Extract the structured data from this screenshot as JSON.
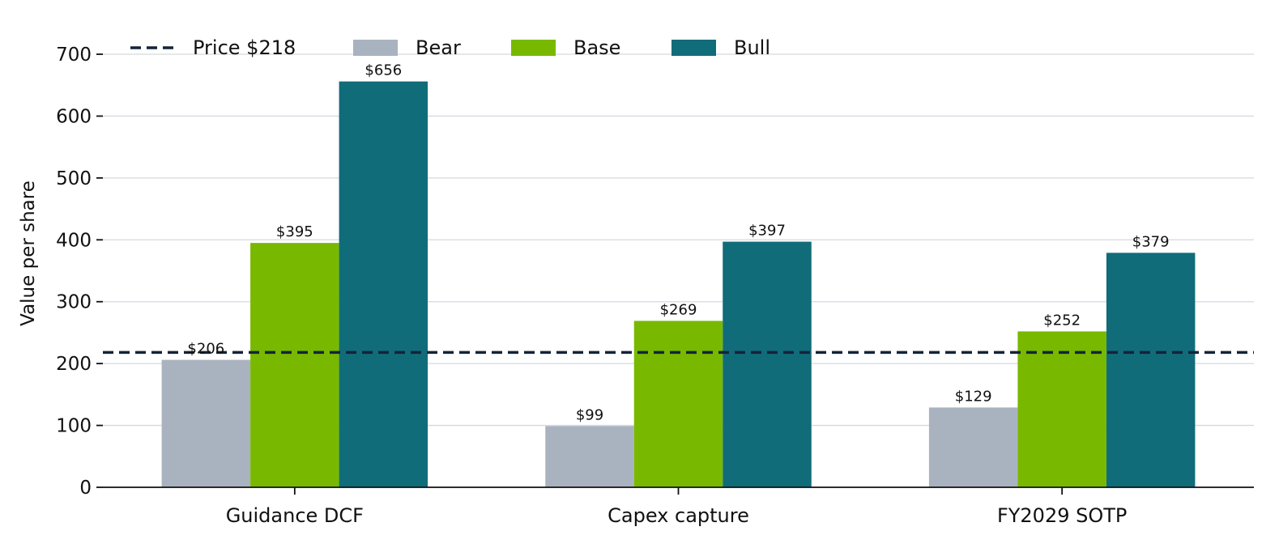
{
  "chart_data": {
    "type": "bar",
    "categories": [
      "Guidance DCF",
      "Capex capture",
      "FY2029 SOTP"
    ],
    "series": [
      {
        "name": "Bear",
        "values": [
          206,
          99,
          129
        ],
        "labels": [
          "$206",
          "$99",
          "$129"
        ],
        "color": "#a9b3bf"
      },
      {
        "name": "Base",
        "values": [
          395,
          269,
          252
        ],
        "labels": [
          "$395",
          "$269",
          "$252"
        ],
        "color": "#78b900"
      },
      {
        "name": "Bull",
        "values": [
          656,
          397,
          379
        ],
        "labels": [
          "$656",
          "$397",
          "$379"
        ],
        "color": "#116c7a"
      }
    ],
    "reference_line": {
      "label": "Price $218",
      "value": 218,
      "color": "#13243a",
      "style": "dashed"
    },
    "xlabel": "",
    "ylabel": "Value per share",
    "ylim": [
      0,
      700
    ],
    "yticks": [
      0,
      100,
      200,
      300,
      400,
      500,
      600,
      700
    ],
    "grid": "horizontal",
    "legend_position": "top-left",
    "grid_color": "#d5d9df"
  }
}
